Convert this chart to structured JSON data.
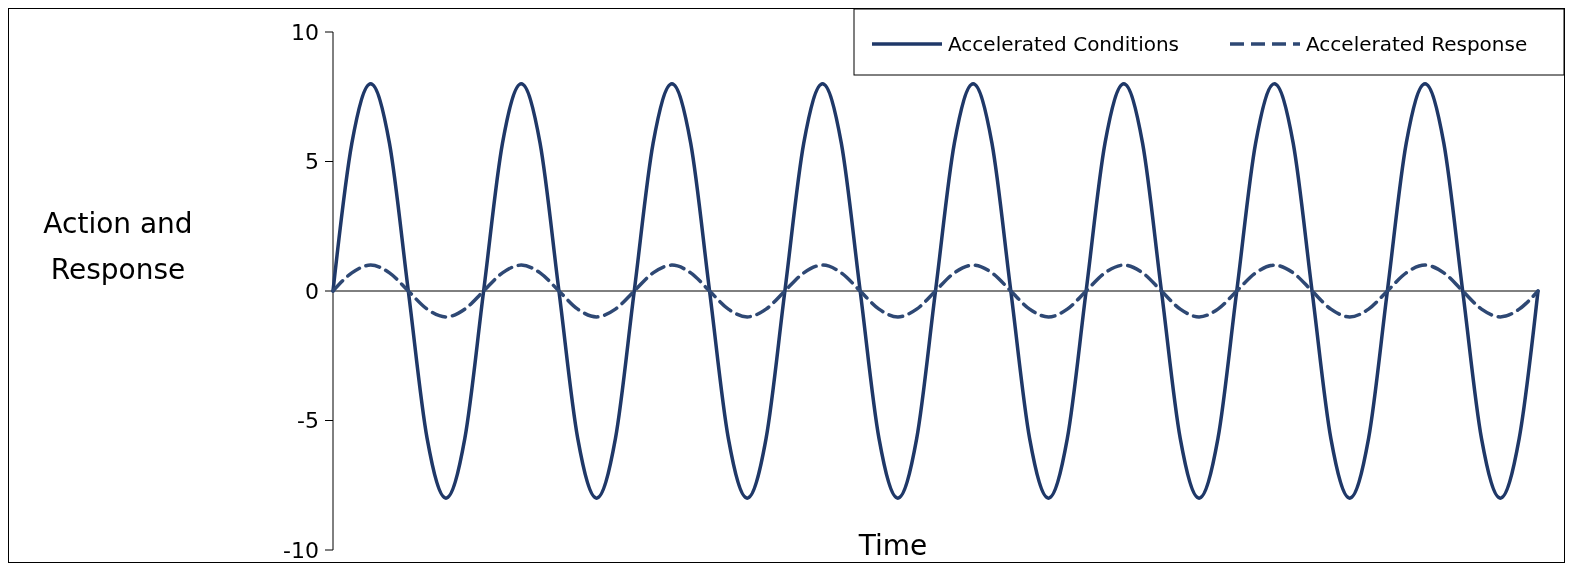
{
  "chart_data": {
    "type": "line",
    "xlabel": "Time",
    "ylabel": "Action and Response",
    "categories": [
      null,
      null,
      null,
      null,
      null,
      null,
      null,
      null,
      null,
      null,
      null,
      null,
      null,
      null,
      null,
      null,
      null,
      null,
      null,
      null,
      null,
      null,
      null,
      null,
      null,
      null,
      null,
      null,
      null,
      null,
      null,
      null,
      null,
      null,
      null,
      null,
      null,
      null,
      null,
      null,
      null,
      null,
      null,
      null,
      null,
      null,
      null,
      null,
      null,
      null,
      null,
      null,
      null,
      null,
      null,
      null,
      null,
      null,
      null,
      null,
      null,
      null,
      null,
      null,
      null
    ],
    "ylim": [
      -10,
      10
    ],
    "yticks": [
      -10,
      -5,
      0,
      5,
      10
    ],
    "legend": "top right",
    "tick_labels": "y",
    "series": [
      {
        "name": "Accelerated Conditions",
        "color": "#1f3868",
        "line_style": "solid",
        "values": [
          0,
          5.7,
          8,
          5.7,
          0,
          -5.7,
          -8,
          -5.7,
          0,
          5.7,
          8,
          5.7,
          0,
          -5.7,
          -8,
          -5.7,
          0,
          5.7,
          8,
          5.7,
          0,
          -5.7,
          -8,
          -5.7,
          0,
          5.7,
          8,
          5.7,
          0,
          -5.7,
          -8,
          -5.7,
          0,
          5.7,
          8,
          5.7,
          0,
          -5.7,
          -8,
          -5.7,
          0,
          5.7,
          8,
          5.7,
          0,
          -5.7,
          -8,
          -5.7,
          0,
          5.7,
          8,
          5.7,
          0,
          -5.7,
          -8,
          -5.7,
          0,
          5.7,
          8,
          5.7,
          0,
          -5.7,
          -8,
          -5.7,
          0
        ]
      },
      {
        "name": "Accelerated Response",
        "color": "#2e4874",
        "line_style": "dashed",
        "values": [
          0,
          0.7,
          1,
          0.7,
          0,
          -0.7,
          -1,
          -0.7,
          0,
          0.7,
          1,
          0.7,
          0,
          -0.7,
          -1,
          -0.7,
          0,
          0.7,
          1,
          0.7,
          0,
          -0.7,
          -1,
          -0.7,
          0,
          0.7,
          1,
          0.7,
          0,
          -0.7,
          -1,
          -0.7,
          0,
          0.7,
          1,
          0.7,
          0,
          -0.7,
          -1,
          -0.7,
          0,
          0.7,
          1,
          0.7,
          0,
          -0.7,
          -1,
          -0.7,
          0,
          0.7,
          1,
          0.7,
          0,
          -0.7,
          -1,
          -0.7,
          0,
          0.7,
          1,
          0.7,
          0,
          -0.7,
          -1,
          -0.7,
          0
        ]
      }
    ]
  }
}
